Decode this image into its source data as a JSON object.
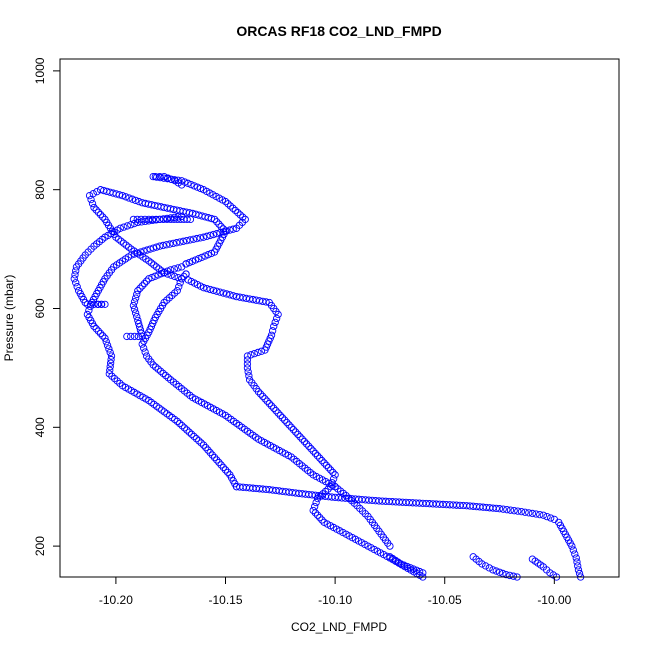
{
  "chart_data": {
    "type": "scatter",
    "title": "ORCAS RF18 CO2_LND_FMPD",
    "xlabel": "CO2_LND_FMPD",
    "ylabel": "Pressure (mbar)",
    "xlim": [
      -10.2255,
      -9.9705
    ],
    "ylim": [
      1020,
      148
    ],
    "y_reversed": true,
    "x_ticks": [
      -10.2,
      -10.15,
      -10.1,
      -10.05,
      -10.0
    ],
    "x_tick_labels": [
      "-10.20",
      "-10.15",
      "-10.10",
      "-10.05",
      "-10.00"
    ],
    "y_ticks": [
      200,
      400,
      600,
      800,
      1000
    ],
    "y_tick_labels": [
      "200",
      "400",
      "600",
      "800",
      "1000"
    ],
    "marker": "open-circle",
    "series": [
      {
        "color": "#0000ff",
        "x": [
          -10.183,
          -10.17,
          -10.16,
          -10.15,
          -10.141,
          -10.145,
          -10.16,
          -10.18,
          -10.193,
          -10.201,
          -10.205,
          -10.208,
          -10.211,
          -10.213,
          -10.21,
          -10.205,
          -10.202,
          -10.203,
          -10.197,
          -10.185,
          -10.172,
          -10.16,
          -10.148,
          -10.145
        ],
        "y": [
          822,
          815,
          800,
          780,
          750,
          735,
          720,
          705,
          690,
          670,
          650,
          630,
          610,
          590,
          570,
          550,
          520,
          490,
          470,
          445,
          410,
          370,
          320,
          300
        ]
      },
      {
        "color": "#0000ff",
        "x": [
          -10.145,
          -10.13,
          -10.115,
          -10.1,
          -10.08,
          -10.06,
          -10.04,
          -10.025,
          -10.015,
          -10.005,
          -10.0
        ],
        "y": [
          300,
          295,
          288,
          282,
          276,
          272,
          268,
          263,
          258,
          252,
          245
        ]
      },
      {
        "color": "#0000ff",
        "x": [
          -9.998,
          -9.995,
          -9.992,
          -9.99,
          -9.989,
          -9.988
        ],
        "y": [
          240,
          220,
          200,
          180,
          160,
          148
        ]
      },
      {
        "color": "#0000ff",
        "x": [
          -10.01,
          -10.005,
          -10.002,
          -9.999
        ],
        "y": [
          178,
          165,
          155,
          148
        ]
      },
      {
        "color": "#0000ff",
        "x": [
          -10.037,
          -10.033,
          -10.028,
          -10.022,
          -10.017
        ],
        "y": [
          182,
          170,
          160,
          152,
          148
        ]
      },
      {
        "color": "#0000ff",
        "x": [
          -10.075,
          -10.07,
          -10.06
        ],
        "y": [
          182,
          170,
          155
        ]
      },
      {
        "color": "#0000ff",
        "x": [
          -10.06,
          -10.075,
          -10.085,
          -10.095,
          -10.105,
          -10.11,
          -10.108,
          -10.102,
          -10.1,
          -10.105,
          -10.115,
          -10.125,
          -10.135,
          -10.139,
          -10.14,
          -10.14,
          -10.132,
          -10.129,
          -10.128,
          -10.126,
          -10.13,
          -10.145,
          -10.16,
          -10.167,
          -10.168
        ],
        "y": [
          148,
          180,
          200,
          220,
          240,
          260,
          280,
          300,
          320,
          340,
          380,
          420,
          460,
          480,
          500,
          520,
          530,
          555,
          570,
          590,
          610,
          620,
          635,
          648,
          658
        ]
      },
      {
        "color": "#0000ff",
        "x": [
          -10.168,
          -10.17,
          -10.172,
          -10.178,
          -10.182,
          -10.185,
          -10.188,
          -10.186,
          -10.183,
          -10.175,
          -10.165,
          -10.15,
          -10.135,
          -10.12,
          -10.11,
          -10.1
        ],
        "y": [
          658,
          650,
          630,
          610,
          585,
          560,
          540,
          520,
          505,
          480,
          450,
          420,
          380,
          350,
          320,
          300
        ]
      },
      {
        "color": "#0000ff",
        "x": [
          -10.1,
          -10.095,
          -10.09,
          -10.085,
          -10.08,
          -10.075
        ],
        "y": [
          300,
          285,
          268,
          250,
          225,
          200
        ]
      },
      {
        "color": "#0000ff",
        "x": [
          -10.195,
          -10.188,
          -10.19,
          -10.192,
          -10.19,
          -10.185,
          -10.175,
          -10.17,
          -10.168
        ],
        "y": [
          553,
          553,
          580,
          605,
          630,
          650,
          665,
          670,
          675
        ]
      },
      {
        "color": "#0000ff",
        "x": [
          -10.168,
          -10.155,
          -10.15,
          -10.155,
          -10.165,
          -10.178,
          -10.188,
          -10.197,
          -10.207,
          -10.212,
          -10.21,
          -10.205,
          -10.2,
          -10.193,
          -10.185,
          -10.178,
          -10.17
        ],
        "y": [
          675,
          695,
          730,
          750,
          760,
          770,
          778,
          790,
          800,
          790,
          770,
          750,
          720,
          700,
          680,
          660,
          650
        ]
      },
      {
        "color": "#0000ff",
        "x": [
          -10.192,
          -10.185,
          -10.175,
          -10.166
        ],
        "y": [
          750,
          750,
          750,
          750
        ]
      },
      {
        "color": "#0000ff",
        "x": [
          -10.213,
          -10.21,
          -10.205,
          -10.208
        ],
        "y": [
          607,
          607,
          607,
          607
        ]
      },
      {
        "color": "#0000ff",
        "x": [
          -10.214,
          -10.217,
          -10.219,
          -10.218,
          -10.214,
          -10.21,
          -10.205,
          -10.198,
          -10.19,
          -10.18,
          -10.17
        ],
        "y": [
          610,
          630,
          650,
          670,
          690,
          705,
          720,
          735,
          745,
          750,
          755
        ]
      },
      {
        "color": "#0000ff",
        "x": [
          -10.182,
          -10.178,
          -10.173,
          -10.17
        ],
        "y": [
          822,
          822,
          815,
          808
        ]
      }
    ]
  }
}
